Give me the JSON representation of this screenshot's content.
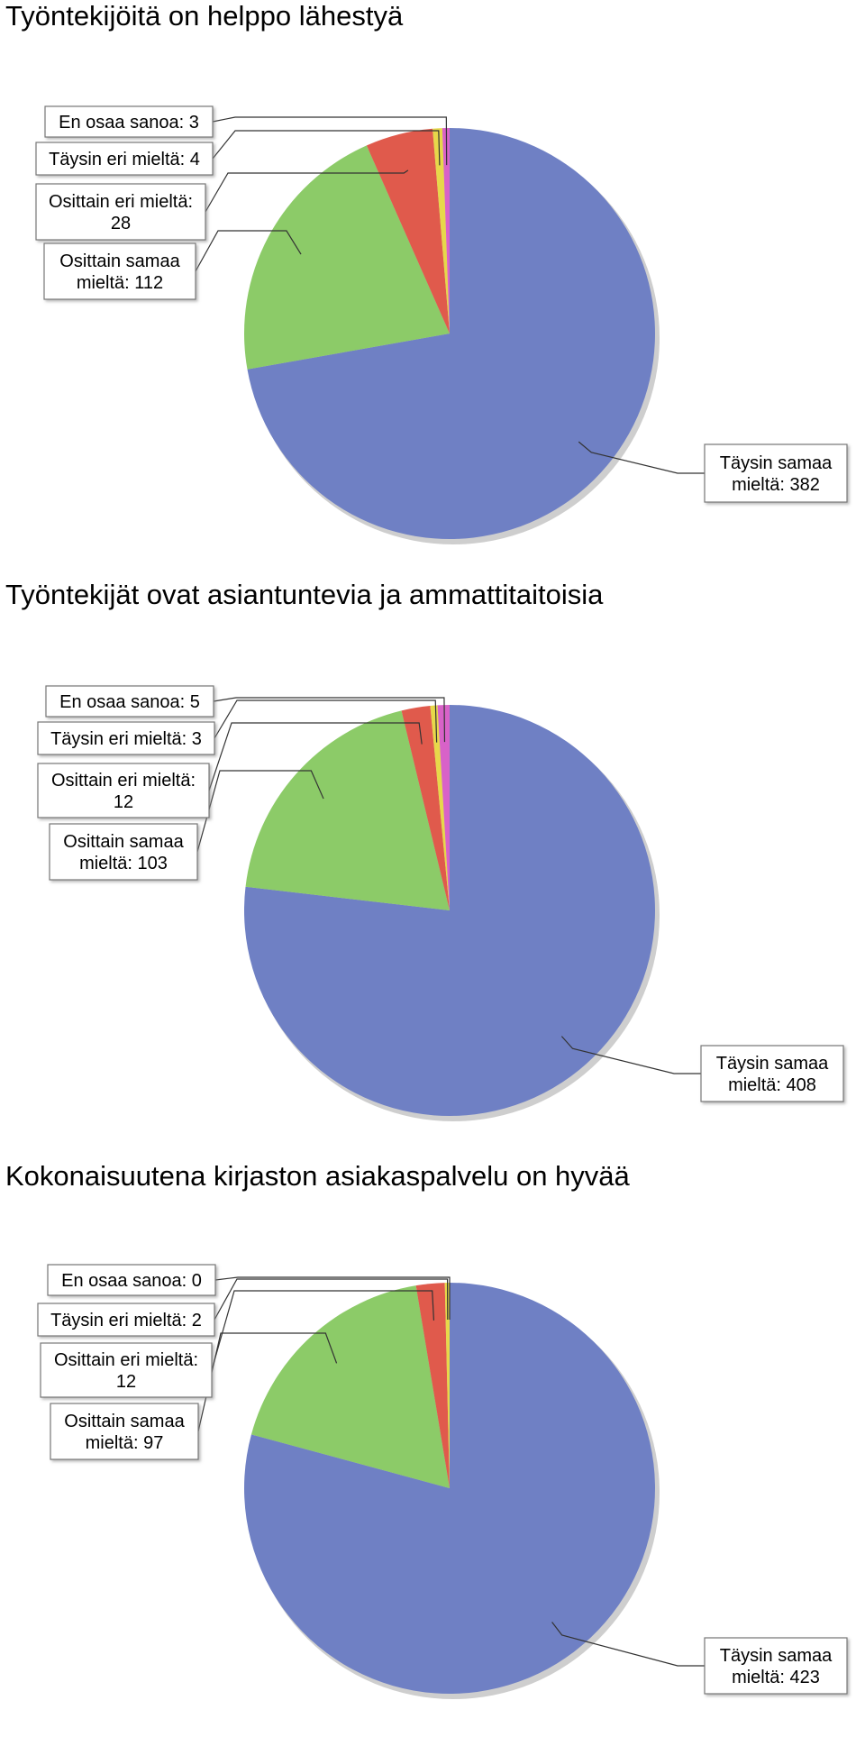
{
  "colors": {
    "Täysin samaa mieltä": "#6f80c4",
    "Osittain samaa mieltä": "#8ccb68",
    "Osittain eri mieltä": "#e05a4c",
    "Täysin eri mieltä": "#e7d84a",
    "En osaa sanoa": "#d862c8"
  },
  "chart_data": [
    {
      "type": "pie",
      "title": "Työntekijöitä on helppo lähestyä",
      "slices": [
        {
          "name": "Täysin samaa mieltä",
          "value": 382,
          "label_lines": [
            "Täysin samaa",
            "mieltä: 382"
          ]
        },
        {
          "name": "Osittain samaa mieltä",
          "value": 112,
          "label_lines": [
            "Osittain samaa",
            "mieltä: 112"
          ]
        },
        {
          "name": "Osittain eri mieltä",
          "value": 28,
          "label_lines": [
            "Osittain eri mieltä:",
            "28"
          ]
        },
        {
          "name": "Täysin eri mieltä",
          "value": 4,
          "label_lines": [
            "Täysin eri mieltä: 4"
          ]
        },
        {
          "name": "En osaa sanoa",
          "value": 3,
          "label_lines": [
            "En osaa sanoa: 3"
          ]
        }
      ]
    },
    {
      "type": "pie",
      "title": "Työntekijät ovat asiantuntevia ja ammattitaitoisia",
      "slices": [
        {
          "name": "Täysin samaa mieltä",
          "value": 408,
          "label_lines": [
            "Täysin samaa",
            "mieltä: 408"
          ]
        },
        {
          "name": "Osittain samaa mieltä",
          "value": 103,
          "label_lines": [
            "Osittain samaa",
            "mieltä: 103"
          ]
        },
        {
          "name": "Osittain eri mieltä",
          "value": 12,
          "label_lines": [
            "Osittain eri mieltä:",
            "12"
          ]
        },
        {
          "name": "Täysin eri mieltä",
          "value": 3,
          "label_lines": [
            "Täysin eri mieltä: 3"
          ]
        },
        {
          "name": "En osaa sanoa",
          "value": 5,
          "label_lines": [
            "En osaa sanoa: 5"
          ]
        }
      ]
    },
    {
      "type": "pie",
      "title": "Kokonaisuutena kirjaston asiakaspalvelu on hyvää",
      "slices": [
        {
          "name": "Täysin samaa mieltä",
          "value": 423,
          "label_lines": [
            "Täysin samaa",
            "mieltä: 423"
          ]
        },
        {
          "name": "Osittain samaa mieltä",
          "value": 97,
          "label_lines": [
            "Osittain samaa",
            "mieltä: 97"
          ]
        },
        {
          "name": "Osittain eri mieltä",
          "value": 12,
          "label_lines": [
            "Osittain eri mieltä:",
            "12"
          ]
        },
        {
          "name": "Täysin eri mieltä",
          "value": 2,
          "label_lines": [
            "Täysin eri mieltä: 2"
          ]
        },
        {
          "name": "En osaa sanoa",
          "value": 0,
          "label_lines": [
            "En osaa sanoa: 0"
          ]
        }
      ]
    }
  ]
}
